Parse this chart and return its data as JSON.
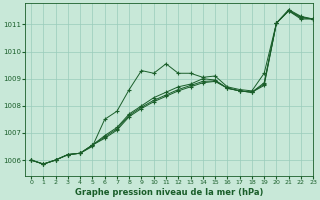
{
  "xlabel": "Graphe pression niveau de la mer (hPa)",
  "bg_color": "#c8e8d8",
  "grid_color": "#99ccbb",
  "line_color": "#1a5e2a",
  "xlim": [
    -0.5,
    23
  ],
  "ylim": [
    1005.4,
    1011.8
  ],
  "xticks": [
    0,
    1,
    2,
    3,
    4,
    5,
    6,
    7,
    8,
    9,
    10,
    11,
    12,
    13,
    14,
    15,
    16,
    17,
    18,
    19,
    20,
    21,
    22,
    23
  ],
  "yticks": [
    1006,
    1007,
    1008,
    1009,
    1010,
    1011
  ],
  "series": [
    [
      1006.0,
      1005.85,
      1006.0,
      1006.2,
      1006.25,
      1006.5,
      1007.5,
      1007.8,
      1008.6,
      1009.3,
      1009.2,
      1009.55,
      1009.2,
      1009.2,
      1009.05,
      1009.1,
      1008.7,
      1008.6,
      1008.55,
      1009.2,
      1011.05,
      1011.5,
      1011.2,
      1011.2
    ],
    [
      1006.0,
      1005.85,
      1006.0,
      1006.2,
      1006.25,
      1006.55,
      1006.8,
      1007.1,
      1007.6,
      1007.9,
      1008.15,
      1008.35,
      1008.55,
      1008.7,
      1008.85,
      1008.9,
      1008.65,
      1008.55,
      1008.5,
      1008.75,
      1011.05,
      1011.5,
      1011.25,
      1011.2
    ],
    [
      1006.0,
      1005.85,
      1006.0,
      1006.2,
      1006.25,
      1006.55,
      1006.9,
      1007.2,
      1007.7,
      1008.0,
      1008.3,
      1008.5,
      1008.7,
      1008.8,
      1009.0,
      1008.95,
      1008.65,
      1008.55,
      1008.5,
      1008.85,
      1011.05,
      1011.55,
      1011.3,
      1011.2
    ],
    [
      1006.0,
      1005.85,
      1006.0,
      1006.2,
      1006.25,
      1006.55,
      1006.85,
      1007.15,
      1007.65,
      1007.95,
      1008.2,
      1008.4,
      1008.6,
      1008.75,
      1008.9,
      1008.92,
      1008.65,
      1008.55,
      1008.5,
      1008.8,
      1011.05,
      1011.52,
      1011.27,
      1011.2
    ]
  ]
}
